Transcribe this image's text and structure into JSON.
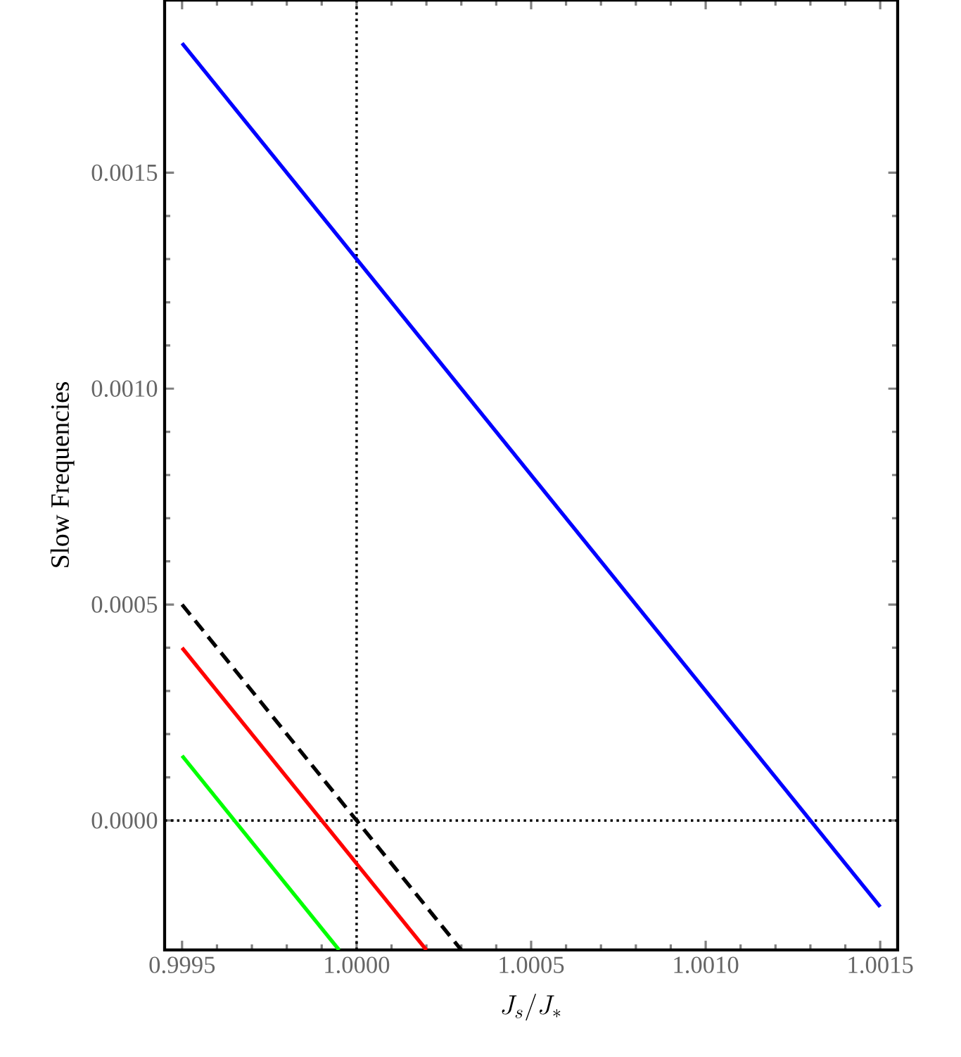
{
  "chart_data": {
    "type": "line",
    "xlabel": "J_s/J_*",
    "ylabel": "Slow Frequencies",
    "xlim": [
      0.99945,
      1.00155
    ],
    "ylim": [
      -0.0003,
      0.0019
    ],
    "xticks": [
      {
        "value": 0.9995,
        "label": "0.9995"
      },
      {
        "value": 1.0,
        "label": "1.0000"
      },
      {
        "value": 1.0005,
        "label": "1.0005"
      },
      {
        "value": 1.001,
        "label": "1.0010"
      },
      {
        "value": 1.0015,
        "label": "1.0015"
      }
    ],
    "yticks": [
      {
        "value": 0.0,
        "label": "0.0000"
      },
      {
        "value": 0.0005,
        "label": "0.0005"
      },
      {
        "value": 0.001,
        "label": "0.0010"
      },
      {
        "value": 0.0015,
        "label": "0.0015"
      }
    ],
    "marker": "none",
    "series": [
      {
        "color": "#0000ff",
        "line_style": "solid",
        "x": [
          0.9995,
          1.0015
        ],
        "values": [
          0.0018,
          -0.0002
        ]
      },
      {
        "color": "#000000",
        "line_style": "dashed",
        "x": [
          0.9995,
          1.0003
        ],
        "values": [
          0.0005,
          -0.0003
        ]
      },
      {
        "color": "#ff0000",
        "line_style": "solid",
        "x": [
          0.9995,
          1.0002
        ],
        "values": [
          0.0004,
          -0.0003
        ]
      },
      {
        "color": "#00ff00",
        "line_style": "solid",
        "x": [
          0.9995,
          0.99995
        ],
        "values": [
          0.00015,
          -0.0003
        ]
      }
    ],
    "ref_lines": [
      {
        "axis": "x",
        "value": 1.0,
        "color": "#000000",
        "line_style": "dotted"
      },
      {
        "axis": "y",
        "value": 0.0,
        "color": "#000000",
        "line_style": "dotted"
      }
    ]
  }
}
